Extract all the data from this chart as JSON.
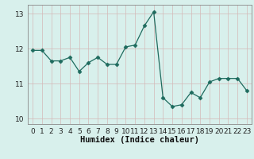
{
  "x": [
    0,
    1,
    2,
    3,
    4,
    5,
    6,
    7,
    8,
    9,
    10,
    11,
    12,
    13,
    14,
    15,
    16,
    17,
    18,
    19,
    20,
    21,
    22,
    23
  ],
  "y": [
    11.95,
    11.95,
    11.65,
    11.65,
    11.75,
    11.35,
    11.6,
    11.75,
    11.55,
    11.55,
    12.05,
    12.1,
    12.65,
    13.05,
    10.6,
    10.35,
    10.4,
    10.75,
    10.6,
    11.05,
    11.15,
    11.15,
    11.15,
    10.8
  ],
  "line_color": "#1e6b5e",
  "marker": "D",
  "marker_size": 2.5,
  "bg_color": "#d8f0ec",
  "grid_color": "#d4b8b8",
  "xlabel": "Humidex (Indice chaleur)",
  "ylim": [
    9.85,
    13.25
  ],
  "xlim": [
    -0.5,
    23.5
  ],
  "yticks": [
    10,
    11,
    12,
    13
  ],
  "xticks": [
    0,
    1,
    2,
    3,
    4,
    5,
    6,
    7,
    8,
    9,
    10,
    11,
    12,
    13,
    14,
    15,
    16,
    17,
    18,
    19,
    20,
    21,
    22,
    23
  ],
  "xlabel_fontsize": 7.5,
  "tick_fontsize": 6.5,
  "spine_color": "#888888"
}
